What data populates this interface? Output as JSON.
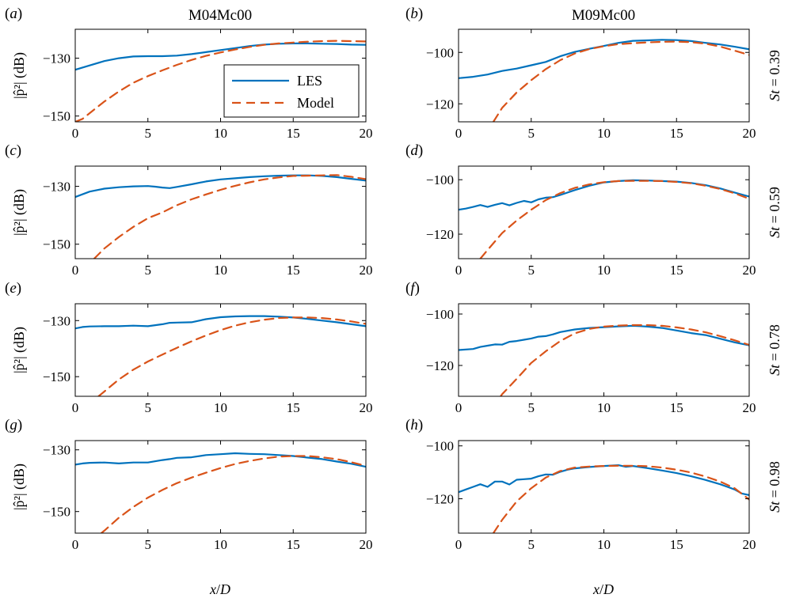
{
  "figure": {
    "col_titles": [
      "M04Mc00",
      "M09Mc00"
    ],
    "row_labels": [
      "St = 0.39",
      "St = 0.59",
      "St = 0.78",
      "St = 0.98"
    ],
    "xlabel": "x/D",
    "ylabel": "|p̂²| (dB)",
    "legend": {
      "entries": [
        "LES",
        "Model"
      ],
      "location": "panel (a), right"
    }
  },
  "colors": {
    "les": "#0072BD",
    "model": "#D95319"
  },
  "chart_data": [
    {
      "panel": "(a)",
      "type": "line",
      "xlim": [
        0,
        20
      ],
      "ylim": [
        -152,
        -120
      ],
      "xticks": [
        0,
        5,
        10,
        15,
        20
      ],
      "yticks": [
        -130,
        -150
      ],
      "series": [
        {
          "name": "LES",
          "style": "solid",
          "x": [
            0,
            1,
            2,
            3,
            4,
            5,
            6,
            7,
            8,
            9,
            10,
            11,
            12,
            13,
            14,
            15,
            16,
            17,
            18,
            19,
            20
          ],
          "y": [
            -134,
            -132.5,
            -131,
            -130,
            -129.4,
            -129.3,
            -129.3,
            -129.1,
            -128.6,
            -127.9,
            -127.2,
            -126.5,
            -125.8,
            -125.3,
            -125.0,
            -124.9,
            -124.9,
            -125.0,
            -125.1,
            -125.3,
            -125.4
          ]
        },
        {
          "name": "Model",
          "style": "dashed",
          "x": [
            0,
            0.5,
            1,
            2,
            3,
            4,
            5,
            6,
            7,
            8,
            9,
            10,
            11,
            12,
            13,
            14,
            15,
            16,
            17,
            18,
            19,
            20
          ],
          "y": [
            -152,
            -151,
            -149,
            -145,
            -141.5,
            -138.5,
            -136.2,
            -134.2,
            -132.3,
            -130.6,
            -129.2,
            -128.0,
            -127.0,
            -126.1,
            -125.4,
            -124.9,
            -124.6,
            -124.3,
            -124.1,
            -124.0,
            -124.1,
            -124.2
          ]
        }
      ]
    },
    {
      "panel": "(b)",
      "type": "line",
      "xlim": [
        0,
        20
      ],
      "ylim": [
        -127,
        -91
      ],
      "xticks": [
        0,
        5,
        10,
        15,
        20
      ],
      "yticks": [
        -100,
        -120
      ],
      "series": [
        {
          "name": "LES",
          "style": "solid",
          "x": [
            0,
            1,
            2,
            3,
            4,
            5,
            6,
            7,
            8,
            9,
            10,
            11,
            12,
            13,
            14,
            15,
            16,
            17,
            18,
            19,
            20
          ],
          "y": [
            -110,
            -109.5,
            -108.6,
            -107.2,
            -106.3,
            -105,
            -103.7,
            -101.5,
            -99.8,
            -98.6,
            -97.5,
            -96.3,
            -95.5,
            -95.3,
            -95.1,
            -95.2,
            -95.6,
            -96.3,
            -96.9,
            -97.8,
            -98.8
          ]
        },
        {
          "name": "Model",
          "style": "dashed",
          "x": [
            2.4,
            3,
            4,
            5,
            6,
            7,
            8,
            9,
            10,
            11,
            12,
            13,
            14,
            15,
            16,
            17,
            18,
            19,
            20
          ],
          "y": [
            -127,
            -121.6,
            -115.6,
            -110.8,
            -106.5,
            -103.0,
            -100.4,
            -98.7,
            -97.6,
            -96.8,
            -96.4,
            -96.1,
            -95.9,
            -95.8,
            -96.0,
            -96.6,
            -97.7,
            -99.3,
            -101.0
          ]
        }
      ]
    },
    {
      "panel": "(c)",
      "type": "line",
      "xlim": [
        0,
        20
      ],
      "ylim": [
        -155,
        -123
      ],
      "xticks": [
        0,
        5,
        10,
        15,
        20
      ],
      "yticks": [
        -130,
        -150
      ],
      "series": [
        {
          "name": "LES",
          "style": "solid",
          "x": [
            0,
            1,
            2,
            3,
            4,
            5,
            5.5,
            6,
            6.5,
            7,
            8,
            9,
            10,
            11,
            12,
            13,
            14,
            15,
            16,
            17,
            18,
            19,
            20
          ],
          "y": [
            -133.7,
            -131.8,
            -130.8,
            -130.3,
            -130.0,
            -129.9,
            -130.1,
            -130.4,
            -130.6,
            -130.2,
            -129.3,
            -128.3,
            -127.6,
            -127.2,
            -126.8,
            -126.5,
            -126.3,
            -126.2,
            -126.2,
            -126.4,
            -126.8,
            -127.4,
            -128.0
          ]
        },
        {
          "name": "Model",
          "style": "dashed",
          "x": [
            1.3,
            2,
            3,
            4,
            5,
            6,
            7,
            8,
            9,
            10,
            11,
            12,
            13,
            14,
            15,
            16,
            17,
            18,
            19,
            20
          ],
          "y": [
            -155,
            -151.5,
            -147.5,
            -144,
            -141,
            -139,
            -136.5,
            -134.5,
            -132.8,
            -131.2,
            -129.8,
            -128.6,
            -127.6,
            -126.9,
            -126.4,
            -126.3,
            -126.2,
            -126.1,
            -126.7,
            -127.5
          ]
        }
      ]
    },
    {
      "panel": "(d)",
      "type": "line",
      "xlim": [
        0,
        20
      ],
      "ylim": [
        -129,
        -95
      ],
      "xticks": [
        0,
        5,
        10,
        15,
        20
      ],
      "yticks": [
        -100,
        -120
      ],
      "series": [
        {
          "name": "LES",
          "style": "solid",
          "x": [
            0,
            0.5,
            1,
            1.5,
            2,
            2.5,
            3,
            3.5,
            4,
            4.5,
            5,
            5.5,
            6,
            6.5,
            7,
            8,
            9,
            10,
            11,
            12,
            13,
            14,
            15,
            16,
            17,
            18,
            19,
            20
          ],
          "y": [
            -111,
            -110.6,
            -110,
            -109.3,
            -110,
            -109.2,
            -108.6,
            -109.4,
            -108.5,
            -107.8,
            -108.3,
            -107.2,
            -106.6,
            -106.4,
            -105.6,
            -103.8,
            -102.2,
            -101.0,
            -100.5,
            -100.2,
            -100.3,
            -100.5,
            -100.7,
            -101.2,
            -102.0,
            -103.2,
            -104.7,
            -106.2
          ]
        },
        {
          "name": "Model",
          "style": "dashed",
          "x": [
            1.5,
            2,
            3,
            4,
            5,
            6,
            7,
            8,
            9,
            10,
            11,
            12,
            13,
            14,
            15,
            16,
            17,
            18,
            19,
            20
          ],
          "y": [
            -129,
            -125.8,
            -119.6,
            -115.0,
            -111.0,
            -107.5,
            -104.9,
            -103.0,
            -101.7,
            -100.9,
            -100.5,
            -100.4,
            -100.4,
            -100.5,
            -100.8,
            -101.3,
            -102.2,
            -103.4,
            -105.0,
            -107.0
          ]
        }
      ]
    },
    {
      "panel": "(e)",
      "type": "line",
      "xlim": [
        0,
        20
      ],
      "ylim": [
        -157,
        -124
      ],
      "xticks": [
        0,
        5,
        10,
        15,
        20
      ],
      "yticks": [
        -130,
        -150
      ],
      "series": [
        {
          "name": "LES",
          "style": "solid",
          "x": [
            0,
            0.5,
            1,
            2,
            3,
            4,
            5,
            6,
            6.5,
            7,
            8,
            9,
            10,
            11,
            12,
            13,
            14,
            15,
            16,
            17,
            18,
            19,
            20
          ],
          "y": [
            -132.8,
            -132.3,
            -132.1,
            -132.0,
            -132.0,
            -131.8,
            -132.0,
            -131.3,
            -130.8,
            -130.7,
            -130.6,
            -129.5,
            -128.8,
            -128.5,
            -128.4,
            -128.4,
            -128.6,
            -128.9,
            -129.4,
            -130.0,
            -130.6,
            -131.3,
            -132.0
          ]
        },
        {
          "name": "Model",
          "style": "dashed",
          "x": [
            1.6,
            2,
            3,
            4,
            5,
            6,
            7,
            8,
            9,
            10,
            11,
            12,
            13,
            14,
            15,
            16,
            17,
            18,
            19,
            20
          ],
          "y": [
            -157,
            -155.3,
            -151,
            -147.5,
            -144.6,
            -142.1,
            -139.7,
            -137.4,
            -135.3,
            -133.4,
            -131.8,
            -130.6,
            -129.7,
            -129.1,
            -128.9,
            -128.9,
            -129.1,
            -129.6,
            -130.3,
            -131.2
          ]
        }
      ]
    },
    {
      "panel": "(f)",
      "type": "line",
      "xlim": [
        0,
        20
      ],
      "ylim": [
        -132,
        -96
      ],
      "xticks": [
        0,
        5,
        10,
        15,
        20
      ],
      "yticks": [
        -100,
        -120
      ],
      "series": [
        {
          "name": "LES",
          "style": "solid",
          "x": [
            0,
            1,
            1.5,
            2,
            2.5,
            3,
            3.5,
            4,
            4.5,
            5,
            5.5,
            6,
            6.5,
            7,
            8,
            9,
            10,
            11,
            12,
            12.5,
            13,
            14,
            15,
            16,
            17,
            18,
            19,
            20
          ],
          "y": [
            -114,
            -113.6,
            -112.8,
            -112.3,
            -111.8,
            -111.9,
            -110.8,
            -110.5,
            -110.0,
            -109.5,
            -108.8,
            -108.6,
            -107.9,
            -107.0,
            -106.0,
            -105.4,
            -105.1,
            -104.8,
            -104.6,
            -104.7,
            -104.9,
            -105.4,
            -106.4,
            -107.4,
            -108.2,
            -109.6,
            -111.0,
            -112.2
          ]
        },
        {
          "name": "Model",
          "style": "dashed",
          "x": [
            2.9,
            3,
            4,
            5,
            6,
            7,
            8,
            9,
            10,
            11,
            12,
            13,
            14,
            15,
            16,
            17,
            18,
            19,
            20
          ],
          "y": [
            -132,
            -131.2,
            -125.2,
            -119.0,
            -114.5,
            -110.5,
            -107.5,
            -105.8,
            -104.9,
            -104.5,
            -104.3,
            -104.3,
            -104.6,
            -105.2,
            -106.0,
            -107.1,
            -108.6,
            -110.2,
            -112.0
          ]
        }
      ]
    },
    {
      "panel": "(g)",
      "type": "line",
      "xlim": [
        0,
        20
      ],
      "ylim": [
        -157,
        -127
      ],
      "xticks": [
        0,
        5,
        10,
        15,
        20
      ],
      "yticks": [
        -130,
        -150
      ],
      "series": [
        {
          "name": "LES",
          "style": "solid",
          "x": [
            0,
            0.5,
            1,
            2,
            3,
            4,
            5,
            6,
            6.5,
            7,
            8,
            9,
            10,
            11,
            12,
            13,
            14,
            15,
            16,
            17,
            18,
            19,
            20
          ],
          "y": [
            -134.8,
            -134.4,
            -134.2,
            -134.1,
            -134.4,
            -134.1,
            -134.1,
            -133.3,
            -133.0,
            -132.6,
            -132.4,
            -131.7,
            -131.4,
            -131.1,
            -131.3,
            -131.4,
            -131.7,
            -132.0,
            -132.5,
            -133.0,
            -133.8,
            -134.5,
            -135.5
          ]
        },
        {
          "name": "Model",
          "style": "dashed",
          "x": [
            1.8,
            2,
            3,
            4,
            5,
            6,
            7,
            8,
            9,
            10,
            11,
            12,
            13,
            14,
            15,
            16,
            17,
            18,
            19,
            20
          ],
          "y": [
            -157,
            -156.2,
            -152.0,
            -148.5,
            -145.5,
            -143.0,
            -140.8,
            -139.0,
            -137.4,
            -135.9,
            -134.6,
            -133.6,
            -132.8,
            -132.2,
            -132.0,
            -132.0,
            -132.4,
            -133.0,
            -134.0,
            -135.2
          ]
        }
      ]
    },
    {
      "panel": "(h)",
      "type": "line",
      "xlim": [
        0,
        20
      ],
      "ylim": [
        -133,
        -98
      ],
      "xticks": [
        0,
        5,
        10,
        15,
        20
      ],
      "yticks": [
        -100,
        -120
      ],
      "series": [
        {
          "name": "LES",
          "style": "solid",
          "x": [
            0,
            0.5,
            1,
            1.5,
            2,
            2.5,
            3,
            3.5,
            4,
            4.5,
            5,
            5.5,
            6,
            6.5,
            7,
            7.5,
            8,
            9,
            10,
            11,
            11.5,
            12,
            13,
            14,
            15,
            16,
            17,
            18,
            18.5,
            19,
            19.5,
            20
          ],
          "y": [
            -117.5,
            -116.5,
            -115.5,
            -114.5,
            -115.5,
            -113.5,
            -113.5,
            -114.6,
            -112.8,
            -112.6,
            -112.4,
            -111.5,
            -110.8,
            -110.9,
            -109.8,
            -109.0,
            -108.5,
            -108.0,
            -107.6,
            -107.3,
            -107.9,
            -107.6,
            -108.4,
            -109.3,
            -110.3,
            -111.5,
            -112.9,
            -114.5,
            -115.5,
            -116.5,
            -118.0,
            -118.6
          ]
        },
        {
          "name": "Model",
          "style": "dashed",
          "x": [
            2.4,
            3,
            4,
            5,
            6,
            7,
            8,
            9,
            10,
            11,
            12,
            13,
            14,
            15,
            16,
            17,
            18,
            19,
            20
          ],
          "y": [
            -133,
            -128.0,
            -121.0,
            -116.0,
            -112.0,
            -109.5,
            -108.2,
            -107.8,
            -107.6,
            -107.5,
            -107.5,
            -107.7,
            -108.2,
            -109.0,
            -110.1,
            -111.6,
            -113.5,
            -116.0,
            -120.3
          ]
        }
      ]
    }
  ]
}
